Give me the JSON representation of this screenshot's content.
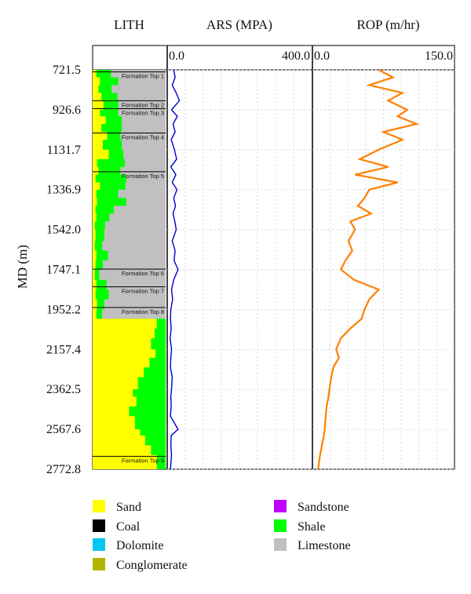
{
  "chart_data": {
    "type": "well-log",
    "ylabel": "MD (m)",
    "y_range": [
      721.5,
      2772.8
    ],
    "y_ticks": [
      "721.5",
      "926.6",
      "1131.7",
      "1336.9",
      "1542.0",
      "1747.1",
      "1952.2",
      "2157.4",
      "2362.5",
      "2567.6",
      "2772.8"
    ],
    "tracks": [
      {
        "id": "lith",
        "title": "LITH",
        "type": "area",
        "series": [
          {
            "name": "Sand",
            "depth": [
              721.5,
              760,
              800,
              840,
              880,
              926.6,
              960,
              1000,
              1040,
              1080,
              1131.7,
              1180,
              1220,
              1260,
              1300,
              1336.9,
              1380,
              1420,
              1460,
              1500,
              1542,
              1600,
              1650,
              1700,
              1747.1,
              1800,
              1850,
              1900,
              1952.2,
              2000,
              2050,
              2100,
              2157.4,
              2200,
              2250,
              2300,
              2362.5,
              2400,
              2450,
              2500,
              2567.6,
              2600,
              2650,
              2700,
              2772.8
            ],
            "fraction": [
              0.05,
              0.1,
              0.08,
              0.12,
              0.15,
              0.1,
              0.18,
              0.12,
              0.2,
              0.14,
              0.22,
              0.06,
              0.08,
              0.04,
              0.1,
              0.05,
              0.06,
              0.04,
              0.05,
              0.03,
              0.04,
              0.03,
              0.05,
              0.04,
              0.03,
              0.05,
              0.04,
              0.06,
              0.05,
              0.88,
              0.85,
              0.8,
              0.86,
              0.78,
              0.7,
              0.62,
              0.55,
              0.6,
              0.5,
              0.58,
              0.65,
              0.72,
              0.8,
              0.88,
              0.9
            ]
          },
          {
            "name": "Shale",
            "depth": [
              721.5,
              760,
              800,
              840,
              880,
              926.6,
              960,
              1000,
              1040,
              1080,
              1131.7,
              1180,
              1220,
              1260,
              1300,
              1336.9,
              1380,
              1420,
              1460,
              1500,
              1542,
              1600,
              1650,
              1700,
              1747.1,
              1800,
              1850,
              1900,
              1952.2,
              2000,
              2050,
              2100,
              2157.4,
              2200,
              2250,
              2300,
              2362.5,
              2400,
              2450,
              2500,
              2567.6,
              2600,
              2650,
              2700,
              2772.8
            ],
            "fraction": [
              0.2,
              0.25,
              0.18,
              0.22,
              0.2,
              0.25,
              0.22,
              0.28,
              0.18,
              0.26,
              0.2,
              0.38,
              0.3,
              0.42,
              0.35,
              0.3,
              0.4,
              0.25,
              0.18,
              0.14,
              0.12,
              0.1,
              0.16,
              0.1,
              0.06,
              0.14,
              0.18,
              0.1,
              0.08,
              0.12,
              0.15,
              0.2,
              0.14,
              0.22,
              0.3,
              0.38,
              0.45,
              0.4,
              0.5,
              0.42,
              0.35,
              0.28,
              0.2,
              0.12,
              0.1
            ]
          }
        ],
        "markers": [
          {
            "label": "Formation Top 1",
            "depth": 732
          },
          {
            "label": "Formation Top 2",
            "depth": 880
          },
          {
            "label": "Formation Top 3",
            "depth": 921
          },
          {
            "label": "Formation Top 4",
            "depth": 1046
          },
          {
            "label": "Formation Top 5",
            "depth": 1245
          },
          {
            "label": "Formation Top 6",
            "depth": 1745
          },
          {
            "label": "Formation Top 7",
            "depth": 1836
          },
          {
            "label": "Formation Top 8",
            "depth": 1942
          },
          {
            "label": "Formation Top 9",
            "depth": 2707
          }
        ]
      },
      {
        "id": "ars",
        "title": "ARS (MPA)",
        "type": "line",
        "xmin": "0.0",
        "xmax": "400.0",
        "xlim": [
          0,
          400
        ],
        "series": [
          {
            "name": "ARS",
            "depth": [
              721.5,
              760,
              800,
              840,
              880,
              926.6,
              960,
              1000,
              1040,
              1080,
              1131.7,
              1180,
              1220,
              1260,
              1300,
              1336.9,
              1380,
              1420,
              1460,
              1500,
              1542,
              1600,
              1650,
              1700,
              1747.1,
              1800,
              1850,
              1900,
              1952.2,
              2000,
              2050,
              2100,
              2157.4,
              2200,
              2250,
              2300,
              2362.5,
              2400,
              2450,
              2500,
              2567.6,
              2600,
              2650,
              2700,
              2772.8
            ],
            "values": [
              18,
              22,
              14,
              25,
              34,
              12,
              28,
              16,
              22,
              11,
              20,
              26,
              10,
              24,
              14,
              27,
              18,
              23,
              16,
              21,
              25,
              14,
              22,
              19,
              30,
              18,
              12,
              15,
              10,
              9,
              11,
              8,
              12,
              10,
              9,
              14,
              12,
              10,
              11,
              9,
              30,
              11,
              10,
              12,
              9
            ]
          }
        ]
      },
      {
        "id": "rop",
        "title": "ROP (m/hr)",
        "type": "line",
        "xmin": "0.0",
        "xmax": "150.0",
        "xlim": [
          0,
          150
        ],
        "series": [
          {
            "name": "ROP",
            "depth": [
              721.5,
              760,
              800,
              840,
              880,
              926.6,
              960,
              1000,
              1040,
              1080,
              1131.7,
              1180,
              1220,
              1260,
              1300,
              1336.9,
              1380,
              1420,
              1460,
              1500,
              1542,
              1600,
              1650,
              1700,
              1747.1,
              1800,
              1850,
              1900,
              1952.2,
              2000,
              2050,
              2100,
              2157.4,
              2200,
              2250,
              2300,
              2362.5,
              2400,
              2450,
              2500,
              2567.6,
              2600,
              2650,
              2700,
              2772.8
            ],
            "values": [
              70,
              85,
              60,
              95,
              80,
              100,
              90,
              110,
              75,
              95,
              70,
              50,
              80,
              45,
              90,
              60,
              55,
              48,
              62,
              40,
              45,
              38,
              42,
              35,
              30,
              44,
              70,
              60,
              55,
              52,
              40,
              30,
              25,
              28,
              22,
              20,
              18,
              17,
              15,
              14,
              13,
              12,
              10,
              8,
              6
            ]
          }
        ]
      }
    ]
  },
  "legend": {
    "items": [
      {
        "label": "Sand",
        "color": "#ffff00"
      },
      {
        "label": "Coal",
        "color": "#000000"
      },
      {
        "label": "Dolomite",
        "color": "#00c8f0"
      },
      {
        "label": "Conglomerate",
        "color": "#b4b400"
      },
      {
        "label": "Sandstone",
        "color": "#c000ff"
      },
      {
        "label": "Shale",
        "color": "#00ff00"
      },
      {
        "label": "Limestone",
        "color": "#c0c0c0"
      }
    ]
  },
  "colors": {
    "ars_line": "#0000cc",
    "rop_line": "#ff8000",
    "grid": "#c8c8c8"
  }
}
